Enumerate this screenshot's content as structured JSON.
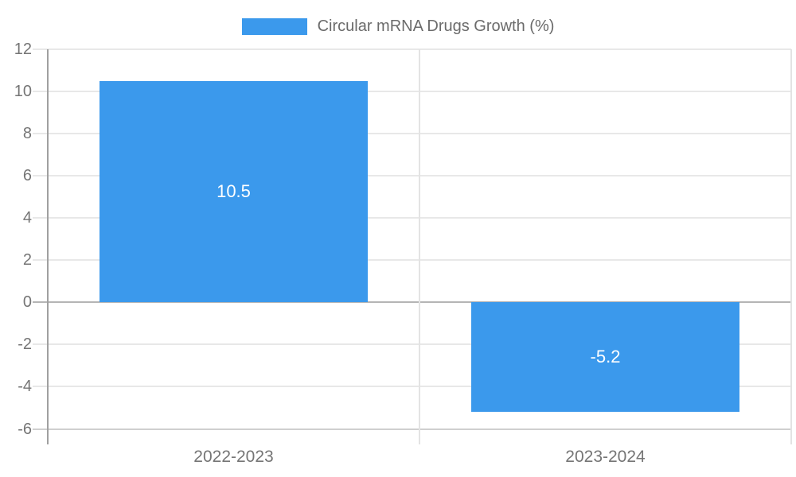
{
  "chart_data": {
    "type": "bar",
    "title": "Circular mRNA Drugs Growth (%)",
    "categories": [
      "2022-2023",
      "2023-2024"
    ],
    "values": [
      10.5,
      -5.2
    ],
    "value_labels": [
      "10.5",
      "-5.2"
    ],
    "ylim": [
      -6,
      12
    ],
    "yticks": [
      12,
      10,
      8,
      6,
      4,
      2,
      0,
      -2,
      -4,
      -6
    ],
    "xlabel": "",
    "ylabel": "",
    "grid": true,
    "legend_position": "top-center",
    "colors": {
      "bar": "#3b99ec",
      "grid_line": "#e8e8e8",
      "zero_line": "#b5b5b5",
      "bottom_line": "#cfcfcf",
      "axis_line": "#a0a0a0",
      "separator_line": "#e3e3e3",
      "tick_text": "#757575",
      "title_text": "#6b6b6b",
      "value_text": "#ffffff",
      "background": "#ffffff"
    }
  }
}
